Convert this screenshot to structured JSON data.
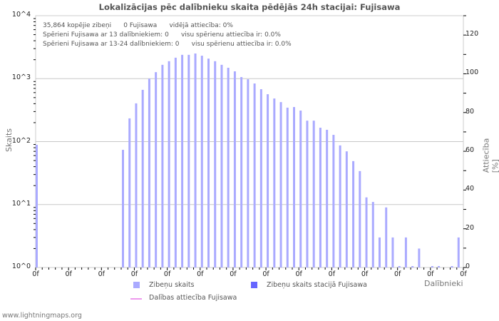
{
  "chart_data": {
    "type": "bar",
    "title": "Lokalizācijas pēc dalībnieku skaita pēdējās 24h stacijai: Fujisawa",
    "xlabel": "Dalībnieki",
    "ylabel": "Skaits",
    "ylabel_right": "Attiecība [%]",
    "yscale": "log",
    "ylim": [
      1,
      10000
    ],
    "ylim_right": [
      0,
      130
    ],
    "grid": true,
    "y_ticks": [
      "10^0",
      "10^1",
      "10^2",
      "10^3",
      "10^4"
    ],
    "y_ticks_right": [
      "0",
      "20",
      "40",
      "60",
      "80",
      "100",
      "120"
    ],
    "x_tick_labels": [
      "0f",
      "0f",
      "0f",
      "0f",
      "0f",
      "0f",
      "0f",
      "0f",
      "0f",
      "0f",
      "0f",
      "0f",
      "0f",
      "0f"
    ],
    "series": [
      {
        "name": "Zibeņu skaits",
        "color": "#aaaaff",
        "values": [
          89,
          0,
          0,
          0,
          0,
          0,
          0,
          0,
          0,
          0,
          0,
          0,
          0,
          74,
          234,
          405,
          664,
          1000,
          1268,
          1658,
          1893,
          2152,
          2389,
          2389,
          2510,
          2313,
          2080,
          1893,
          1658,
          1489,
          1306,
          1059,
          978,
          838,
          680,
          566,
          484,
          424,
          346,
          354,
          311,
          215,
          215,
          166,
          154,
          128,
          87,
          70,
          49,
          34,
          13,
          11,
          3,
          9,
          3,
          1,
          3,
          1,
          2,
          0,
          1,
          1,
          0,
          1,
          3
        ]
      },
      {
        "name": "Zibeņu skaits stacijā Fujisawa",
        "color": "#6666ff",
        "values": []
      },
      {
        "name": "Dalības attiecība Fujisawa",
        "color": "#ee99ee",
        "type": "line",
        "values": []
      }
    ],
    "annotations": [
      "35,864 kopējie zibeņi      0 Fujisawa      vidējā attiecība: 0%",
      "Spērieni Fujisawa ar 13 dalībniekiem: 0      visu spērienu attiecība ir: 0.0%",
      "Spērieni Fujisawa ar 13-24 dalībniekiem: 0      visu spērienu attiecība ir: 0.0%"
    ],
    "legend_position": "bottom"
  },
  "footer": "www.lightningmaps.org"
}
